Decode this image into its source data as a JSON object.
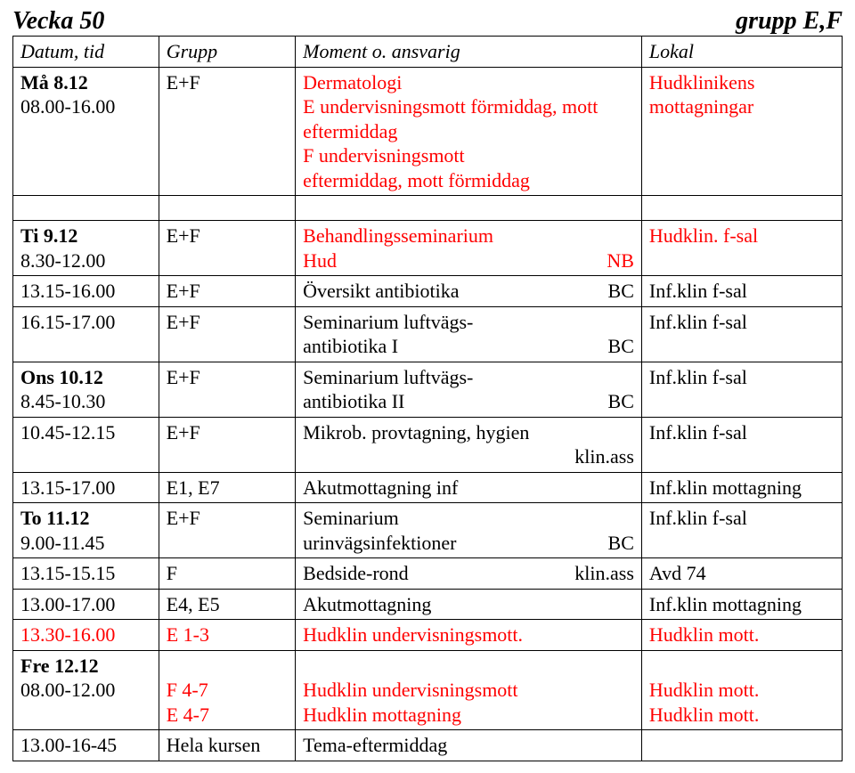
{
  "header": {
    "left": "Vecka 50",
    "right": "grupp E,F"
  },
  "thead": {
    "c1": "Datum, tid",
    "c2": "Grupp",
    "c3": "Moment o. ansvarig",
    "c4": "Lokal"
  },
  "rows": [
    {
      "c1": {
        "lines": [
          "Må 8.12",
          "08.00-16.00"
        ],
        "bold_first": true
      },
      "c2": "E+F",
      "c3": {
        "lines": [
          "Dermatologi",
          "E undervisningsmott förmiddag, mott eftermiddag",
          "F undervisningsmott",
          "eftermiddag, mott förmiddag"
        ],
        "color": "red"
      },
      "c4": {
        "lines": [
          "Hudklinikens",
          "mottagningar"
        ],
        "color": "red"
      }
    },
    {
      "spacer": true
    },
    {
      "c1": {
        "lines": [
          "Ti 9.12",
          "8.30-12.00"
        ],
        "bold_first": true
      },
      "c2": "E+F",
      "c3": {
        "pairs": [
          [
            "Behandlingsseminarium",
            ""
          ],
          [
            " Hud",
            "NB"
          ]
        ],
        "color": "red"
      },
      "c4": {
        "lines": [
          "Hudklin. f-sal"
        ],
        "color": "red"
      }
    },
    {
      "c1": {
        "lines": [
          "13.15-16.00"
        ]
      },
      "c2": "E+F",
      "c3": {
        "pairs": [
          [
            "Översikt antibiotika",
            "BC"
          ]
        ]
      },
      "c4": {
        "lines": [
          "Inf.klin f-sal"
        ]
      }
    },
    {
      "c1": {
        "lines": [
          "16.15-17.00"
        ]
      },
      "c2": "E+F",
      "c3": {
        "pairs": [
          [
            "Seminarium luftvägs-",
            ""
          ],
          [
            "antibiotika  I",
            "BC"
          ]
        ]
      },
      "c4": {
        "lines": [
          "Inf.klin f-sal"
        ]
      }
    },
    {
      "c1": {
        "lines": [
          "Ons 10.12",
          "8.45-10.30"
        ],
        "bold_first": true
      },
      "c2": "E+F",
      "c3": {
        "pairs": [
          [
            "Seminarium luftvägs-",
            ""
          ],
          [
            "antibiotika  II",
            "BC"
          ]
        ]
      },
      "c4": {
        "lines": [
          "Inf.klin f-sal"
        ]
      }
    },
    {
      "c1": {
        "lines": [
          "10.45-12.15"
        ]
      },
      "c2": "E+F",
      "c3": {
        "pairs": [
          [
            "Mikrob. provtagning, hygien",
            ""
          ],
          [
            "",
            "klin.ass"
          ]
        ]
      },
      "c4": {
        "lines": [
          "Inf.klin f-sal"
        ]
      }
    },
    {
      "c1": {
        "lines": [
          "13.15-17.00"
        ]
      },
      "c2": "E1, E7",
      "c3": {
        "pairs": [
          [
            "Akutmottagning inf",
            ""
          ]
        ]
      },
      "c4": {
        "lines": [
          "Inf.klin mottagning"
        ]
      }
    },
    {
      "c1": {
        "lines": [
          "To 11.12",
          "9.00-11.45"
        ],
        "bold_first": true
      },
      "c2": "E+F",
      "c3": {
        "pairs": [
          [
            "Seminarium",
            ""
          ],
          [
            "urinvägsinfektioner",
            "BC"
          ]
        ]
      },
      "c4": {
        "lines": [
          "Inf.klin f-sal"
        ]
      }
    },
    {
      "c1": {
        "lines": [
          "13.15-15.15"
        ]
      },
      "c2": "F",
      "c3": {
        "pairs": [
          [
            "Bedside-rond",
            "klin.ass"
          ]
        ]
      },
      "c4": {
        "lines": [
          "Avd 74"
        ]
      }
    },
    {
      "c1": {
        "lines": [
          "13.00-17.00"
        ]
      },
      "c2": "E4, E5",
      "c3": {
        "pairs": [
          [
            "Akutmottagning",
            ""
          ]
        ]
      },
      "c4": {
        "lines": [
          "Inf.klin mottagning"
        ]
      }
    },
    {
      "c1": {
        "lines": [
          "13.30-16.00"
        ],
        "color": "red"
      },
      "c2": {
        "text": "E 1-3",
        "color": "red"
      },
      "c3": {
        "pairs": [
          [
            "Hudklin undervisningsmott.",
            ""
          ]
        ],
        "color": "red"
      },
      "c4": {
        "lines": [
          "Hudklin mott."
        ],
        "color": "red"
      }
    },
    {
      "c1": {
        "lines": [
          "Fre 12.12",
          "08.00-12.00"
        ],
        "bold_first": true
      },
      "c2": {
        "lines": [
          "",
          "F 4-7",
          "E 4-7"
        ],
        "color": "red"
      },
      "c3": {
        "lines": [
          "",
          "Hudklin undervisningsmott",
          "Hudklin  mottagning"
        ],
        "color": "red"
      },
      "c4": {
        "lines": [
          "",
          "Hudklin mott.",
          "Hudklin mott."
        ],
        "color": "red"
      }
    },
    {
      "c1": {
        "lines": [
          "13.00-16-45"
        ]
      },
      "c2": "Hela kursen",
      "c3": {
        "pairs": [
          [
            "Tema-eftermiddag",
            ""
          ]
        ]
      },
      "c4": {
        "lines": [
          ""
        ]
      }
    }
  ]
}
